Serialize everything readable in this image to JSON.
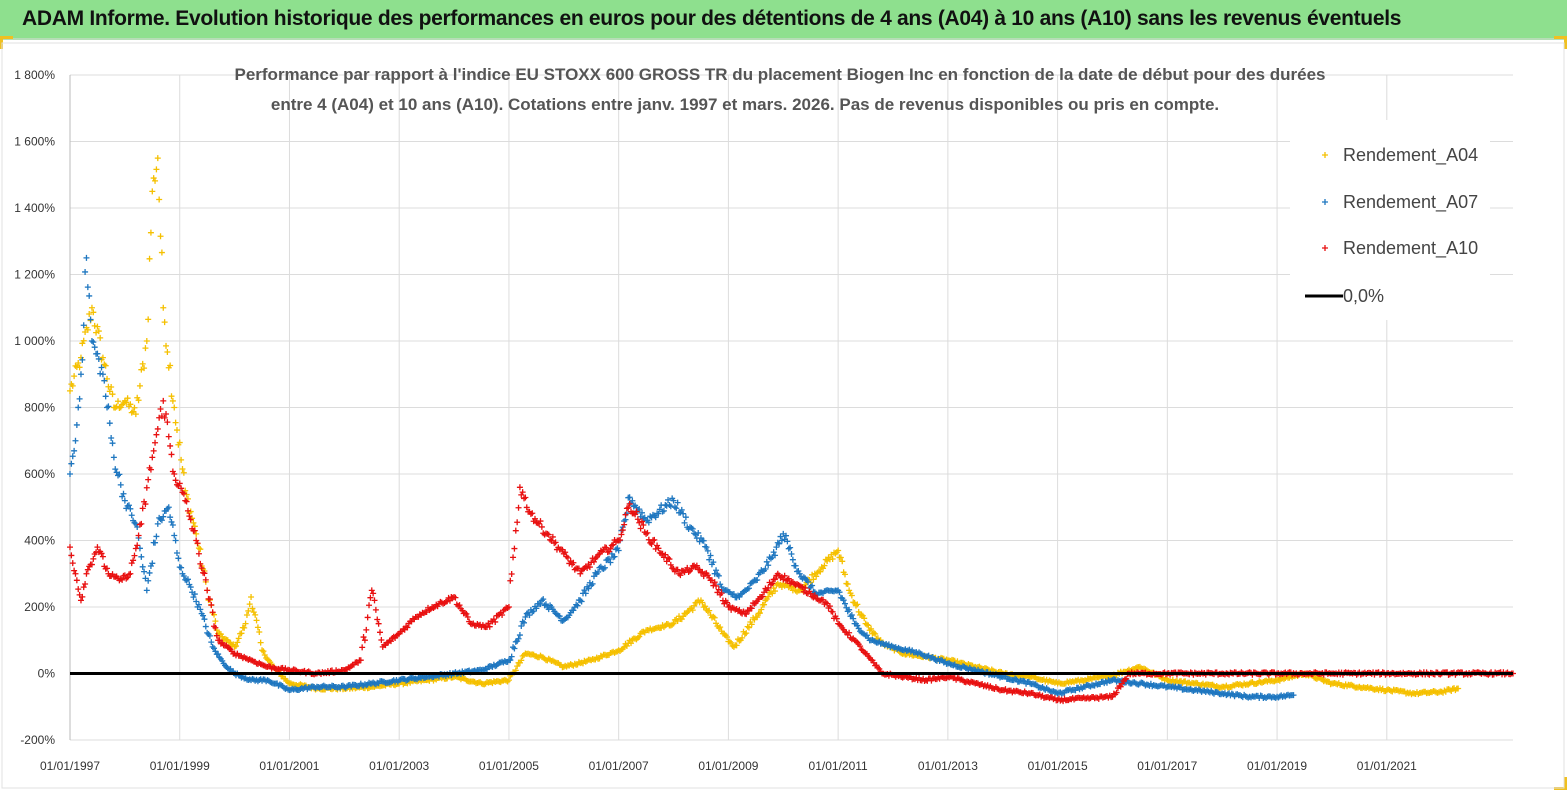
{
  "header": {
    "title": "ADAM Informe. Evolution historique des performances en euros pour des détentions de 4 ans (A04) à 10 ans (A10) sans les revenus éventuels"
  },
  "colors": {
    "a04": "#f5c000",
    "a07": "#1f77c0",
    "a10": "#e81010",
    "zero": "#000000",
    "banner": "#8ee08e"
  },
  "chart_data": {
    "type": "scatter",
    "title_lines": [
      "Performance par rapport à l'indice EU STOXX 600 GROSS TR  du placement Biogen Inc en fonction de la date de début pour des durées",
      "entre 4 (A04) et 10 ans (A10). Cotations entre janv. 1997 et mars. 2026. Pas de revenus disponibles ou pris en compte."
    ],
    "x_tick_labels": [
      "01/01/1997",
      "01/01/1999",
      "01/01/2001",
      "01/01/2003",
      "01/01/2005",
      "01/01/2007",
      "01/01/2009",
      "01/01/2011",
      "01/01/2013",
      "01/01/2015",
      "01/01/2017",
      "01/01/2019",
      "01/01/2021"
    ],
    "y_tick_labels": [
      "-200%",
      "0%",
      "200%",
      "400%",
      "600%",
      "800%",
      "1 000%",
      "1 200%",
      "1 400%",
      "1 600%",
      "1 800%"
    ],
    "xlim": [
      1997.0,
      2023.3
    ],
    "ylim": [
      -200,
      1800
    ],
    "grid": true,
    "legend_position": "top-right",
    "series": [
      {
        "name": "Rendement_A04",
        "color_key": "a04",
        "marker": "plus",
        "points": [
          [
            1997.0,
            850
          ],
          [
            1997.2,
            950
          ],
          [
            1997.4,
            1100
          ],
          [
            1997.6,
            950
          ],
          [
            1997.8,
            800
          ],
          [
            1998.0,
            820
          ],
          [
            1998.2,
            780
          ],
          [
            1998.4,
            1000
          ],
          [
            1998.5,
            1450
          ],
          [
            1998.6,
            1550
          ],
          [
            1998.7,
            1100
          ],
          [
            1998.9,
            800
          ],
          [
            1999.1,
            550
          ],
          [
            1999.3,
            420
          ],
          [
            1999.5,
            250
          ],
          [
            1999.7,
            120
          ],
          [
            2000.0,
            80
          ],
          [
            2000.2,
            150
          ],
          [
            2000.3,
            230
          ],
          [
            2000.5,
            70
          ],
          [
            2000.7,
            20
          ],
          [
            2001.0,
            -30
          ],
          [
            2001.5,
            -45
          ],
          [
            2002.0,
            -45
          ],
          [
            2002.5,
            -40
          ],
          [
            2003.0,
            -30
          ],
          [
            2003.5,
            -20
          ],
          [
            2004.0,
            -10
          ],
          [
            2004.5,
            -30
          ],
          [
            2005.0,
            -20
          ],
          [
            2005.3,
            60
          ],
          [
            2005.6,
            50
          ],
          [
            2006.0,
            20
          ],
          [
            2006.5,
            40
          ],
          [
            2007.0,
            70
          ],
          [
            2007.5,
            130
          ],
          [
            2008.0,
            150
          ],
          [
            2008.5,
            220
          ],
          [
            2008.9,
            120
          ],
          [
            2009.1,
            80
          ],
          [
            2009.5,
            170
          ],
          [
            2009.9,
            270
          ],
          [
            2010.3,
            250
          ],
          [
            2010.7,
            320
          ],
          [
            2011.0,
            370
          ],
          [
            2011.2,
            250
          ],
          [
            2011.5,
            150
          ],
          [
            2011.8,
            90
          ],
          [
            2012.2,
            60
          ],
          [
            2012.6,
            50
          ],
          [
            2013.0,
            40
          ],
          [
            2013.5,
            20
          ],
          [
            2014.0,
            0
          ],
          [
            2014.5,
            -10
          ],
          [
            2015.0,
            -30
          ],
          [
            2015.5,
            -20
          ],
          [
            2016.0,
            -5
          ],
          [
            2016.5,
            20
          ],
          [
            2017.0,
            -20
          ],
          [
            2017.5,
            -30
          ],
          [
            2018.0,
            -40
          ],
          [
            2018.5,
            -30
          ],
          [
            2019.0,
            -20
          ],
          [
            2019.5,
            0
          ],
          [
            2020.0,
            -30
          ],
          [
            2020.5,
            -40
          ],
          [
            2021.0,
            -50
          ],
          [
            2021.5,
            -60
          ],
          [
            2022.0,
            -55
          ],
          [
            2022.3,
            -45
          ]
        ]
      },
      {
        "name": "Rendement_A07",
        "color_key": "a07",
        "marker": "plus",
        "points": [
          [
            1997.0,
            600
          ],
          [
            1997.1,
            700
          ],
          [
            1997.2,
            900
          ],
          [
            1997.3,
            1250
          ],
          [
            1997.4,
            1000
          ],
          [
            1997.6,
            900
          ],
          [
            1997.8,
            650
          ],
          [
            1998.0,
            520
          ],
          [
            1998.2,
            450
          ],
          [
            1998.4,
            250
          ],
          [
            1998.6,
            450
          ],
          [
            1998.8,
            500
          ],
          [
            1999.0,
            320
          ],
          [
            1999.2,
            260
          ],
          [
            1999.4,
            180
          ],
          [
            1999.6,
            80
          ],
          [
            1999.8,
            30
          ],
          [
            2000.0,
            0
          ],
          [
            2000.3,
            -20
          ],
          [
            2000.6,
            -20
          ],
          [
            2001.0,
            -50
          ],
          [
            2001.5,
            -40
          ],
          [
            2002.0,
            -40
          ],
          [
            2002.5,
            -30
          ],
          [
            2003.0,
            -20
          ],
          [
            2003.5,
            -10
          ],
          [
            2004.0,
            0
          ],
          [
            2004.5,
            10
          ],
          [
            2005.0,
            40
          ],
          [
            2005.3,
            170
          ],
          [
            2005.6,
            220
          ],
          [
            2006.0,
            160
          ],
          [
            2006.3,
            220
          ],
          [
            2006.6,
            300
          ],
          [
            2007.0,
            370
          ],
          [
            2007.2,
            530
          ],
          [
            2007.5,
            460
          ],
          [
            2008.0,
            520
          ],
          [
            2008.3,
            440
          ],
          [
            2008.6,
            380
          ],
          [
            2008.9,
            250
          ],
          [
            2009.2,
            230
          ],
          [
            2009.5,
            280
          ],
          [
            2009.8,
            350
          ],
          [
            2010.0,
            420
          ],
          [
            2010.3,
            300
          ],
          [
            2010.6,
            240
          ],
          [
            2011.0,
            250
          ],
          [
            2011.3,
            150
          ],
          [
            2011.6,
            100
          ],
          [
            2012.0,
            80
          ],
          [
            2012.5,
            60
          ],
          [
            2013.0,
            30
          ],
          [
            2013.5,
            10
          ],
          [
            2014.0,
            -10
          ],
          [
            2014.5,
            -30
          ],
          [
            2015.0,
            -60
          ],
          [
            2015.5,
            -40
          ],
          [
            2016.0,
            -20
          ],
          [
            2016.5,
            -30
          ],
          [
            2017.0,
            -40
          ],
          [
            2017.5,
            -50
          ],
          [
            2018.0,
            -60
          ],
          [
            2018.5,
            -70
          ],
          [
            2019.0,
            -70
          ],
          [
            2019.3,
            -65
          ]
        ]
      },
      {
        "name": "Rendement_A10",
        "color_key": "a10",
        "marker": "plus",
        "points": [
          [
            1997.0,
            380
          ],
          [
            1997.1,
            300
          ],
          [
            1997.2,
            220
          ],
          [
            1997.3,
            300
          ],
          [
            1997.5,
            380
          ],
          [
            1997.7,
            300
          ],
          [
            1997.9,
            280
          ],
          [
            1998.1,
            300
          ],
          [
            1998.3,
            450
          ],
          [
            1998.5,
            650
          ],
          [
            1998.7,
            820
          ],
          [
            1998.9,
            600
          ],
          [
            1999.1,
            520
          ],
          [
            1999.3,
            400
          ],
          [
            1999.5,
            250
          ],
          [
            1999.7,
            100
          ],
          [
            2000.0,
            60
          ],
          [
            2000.3,
            40
          ],
          [
            2000.6,
            20
          ],
          [
            2001.0,
            10
          ],
          [
            2001.5,
            0
          ],
          [
            2002.0,
            10
          ],
          [
            2002.3,
            40
          ],
          [
            2002.5,
            250
          ],
          [
            2002.7,
            80
          ],
          [
            2003.0,
            120
          ],
          [
            2003.3,
            170
          ],
          [
            2003.6,
            200
          ],
          [
            2004.0,
            230
          ],
          [
            2004.3,
            150
          ],
          [
            2004.6,
            140
          ],
          [
            2005.0,
            200
          ],
          [
            2005.2,
            560
          ],
          [
            2005.4,
            480
          ],
          [
            2005.7,
            420
          ],
          [
            2006.0,
            360
          ],
          [
            2006.3,
            300
          ],
          [
            2006.6,
            350
          ],
          [
            2007.0,
            400
          ],
          [
            2007.2,
            510
          ],
          [
            2007.5,
            420
          ],
          [
            2007.8,
            360
          ],
          [
            2008.1,
            300
          ],
          [
            2008.4,
            320
          ],
          [
            2008.7,
            280
          ],
          [
            2009.0,
            200
          ],
          [
            2009.3,
            180
          ],
          [
            2009.6,
            230
          ],
          [
            2009.9,
            300
          ],
          [
            2010.2,
            270
          ],
          [
            2010.5,
            240
          ],
          [
            2010.8,
            210
          ],
          [
            2011.0,
            150
          ],
          [
            2011.3,
            100
          ],
          [
            2011.5,
            60
          ],
          [
            2011.8,
            0
          ],
          [
            2012.2,
            -10
          ],
          [
            2012.6,
            -20
          ],
          [
            2013.0,
            -10
          ],
          [
            2013.5,
            -30
          ],
          [
            2014.0,
            -50
          ],
          [
            2014.5,
            -60
          ],
          [
            2015.0,
            -80
          ],
          [
            2015.5,
            -75
          ],
          [
            2016.0,
            -70
          ],
          [
            2016.3,
            0
          ],
          [
            2017.0,
            0
          ],
          [
            2018.0,
            0
          ],
          [
            2019.0,
            0
          ],
          [
            2020.0,
            0
          ],
          [
            2021.0,
            0
          ],
          [
            2022.0,
            0
          ],
          [
            2023.0,
            0
          ],
          [
            2023.3,
            0
          ]
        ]
      }
    ],
    "reference_line": {
      "name": "0,0%",
      "value": 0
    }
  }
}
